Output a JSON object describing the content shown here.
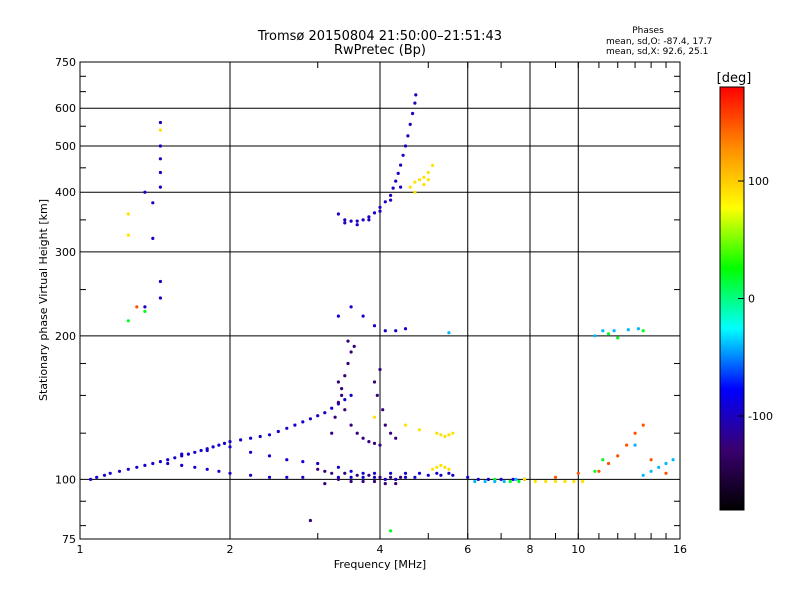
{
  "chart_data": {
    "type": "scatter",
    "title": "Tromsø 20150804 21:50:00–21:51:43",
    "subtitle": "RwPretec (Bp)",
    "xlabel": "Frequency [MHz]",
    "ylabel": "Stationary phase Virtual Height [km]",
    "x_scale": "log",
    "y_scale": "log",
    "xlim": [
      1,
      16
    ],
    "ylim": [
      75,
      750
    ],
    "x_ticks": [
      1,
      2,
      4,
      6,
      8,
      10,
      16
    ],
    "x_tick_labels": [
      "1",
      "2",
      "4",
      "6",
      "8",
      "10",
      "16"
    ],
    "y_ticks": [
      75,
      100,
      200,
      300,
      400,
      500,
      600,
      750
    ],
    "y_tick_labels": [
      "75",
      "100",
      "200",
      "300",
      "400",
      "500",
      "600",
      "750"
    ],
    "grid": true,
    "stats": {
      "heading": "Phases",
      "line_o": "mean, sd,O: -87.4, 17.7",
      "line_x": "mean, sd,X:  92.6, 25.1"
    },
    "colorbar": {
      "label": "[deg]",
      "range": [
        -180,
        180
      ],
      "ticks": [
        100,
        0,
        -100
      ],
      "tick_labels": [
        "100",
        "0",
        "-100"
      ],
      "colors": [
        "#ff0000",
        "#ff8c00",
        "#ffff00",
        "#00ff00",
        "#00ffff",
        "#0000ff",
        "#3a0070",
        "#000000"
      ]
    },
    "series": [
      {
        "phase_deg": -95,
        "points": [
          [
            1.05,
            100
          ],
          [
            1.08,
            101
          ],
          [
            1.12,
            102
          ],
          [
            1.15,
            103
          ],
          [
            1.2,
            104
          ],
          [
            1.25,
            105
          ],
          [
            1.3,
            106
          ],
          [
            1.35,
            107
          ],
          [
            1.4,
            108
          ],
          [
            1.45,
            109
          ],
          [
            1.5,
            110
          ],
          [
            1.55,
            111
          ],
          [
            1.6,
            112
          ],
          [
            1.65,
            113
          ],
          [
            1.7,
            114
          ],
          [
            1.75,
            115
          ],
          [
            1.8,
            116
          ],
          [
            1.85,
            117
          ],
          [
            1.9,
            118
          ],
          [
            1.95,
            119
          ],
          [
            2.0,
            120
          ],
          [
            2.1,
            121
          ],
          [
            2.2,
            122
          ],
          [
            2.3,
            123
          ],
          [
            2.4,
            124
          ],
          [
            2.5,
            126
          ],
          [
            2.6,
            128
          ],
          [
            2.7,
            130
          ],
          [
            2.8,
            132
          ],
          [
            2.9,
            134
          ],
          [
            3.0,
            136
          ],
          [
            3.1,
            138
          ],
          [
            3.2,
            141
          ],
          [
            3.3,
            144
          ],
          [
            3.4,
            147
          ],
          [
            3.5,
            150
          ],
          [
            1.5,
            108
          ],
          [
            1.6,
            107
          ],
          [
            1.7,
            106
          ],
          [
            1.8,
            105
          ],
          [
            1.9,
            104
          ],
          [
            2.0,
            103
          ],
          [
            2.2,
            102
          ],
          [
            2.4,
            101
          ],
          [
            2.6,
            101
          ],
          [
            2.8,
            101
          ],
          [
            1.6,
            113
          ],
          [
            1.8,
            115
          ],
          [
            2.0,
            117
          ],
          [
            2.2,
            114
          ],
          [
            2.4,
            112
          ],
          [
            2.6,
            110
          ],
          [
            2.8,
            109
          ],
          [
            3.0,
            108
          ],
          [
            3.3,
            101
          ],
          [
            3.5,
            101
          ],
          [
            3.7,
            101
          ],
          [
            3.9,
            101
          ],
          [
            4.1,
            100
          ],
          [
            4.3,
            100
          ],
          [
            4.5,
            101
          ],
          [
            4.7,
            101
          ],
          [
            5.0,
            102
          ],
          [
            5.3,
            102
          ],
          [
            5.6,
            102
          ],
          [
            6.0,
            101
          ],
          [
            6.3,
            100
          ],
          [
            6.6,
            100
          ],
          [
            7.0,
            100
          ],
          [
            7.4,
            100
          ],
          [
            7.8,
            100
          ],
          [
            3.3,
            106
          ],
          [
            3.5,
            104
          ],
          [
            3.7,
            103
          ],
          [
            3.9,
            103
          ],
          [
            4.2,
            103
          ],
          [
            4.5,
            103
          ],
          [
            4.8,
            103
          ],
          [
            5.2,
            103
          ],
          [
            5.5,
            103
          ],
          [
            3.3,
            220
          ],
          [
            3.5,
            230
          ],
          [
            3.7,
            220
          ],
          [
            3.9,
            210
          ],
          [
            4.1,
            205
          ],
          [
            4.3,
            205
          ],
          [
            4.5,
            207
          ]
        ]
      },
      {
        "phase_deg": -125,
        "points": [
          [
            3.2,
            125
          ],
          [
            3.25,
            135
          ],
          [
            3.3,
            145
          ],
          [
            3.35,
            155
          ],
          [
            3.4,
            165
          ],
          [
            3.45,
            175
          ],
          [
            3.5,
            185
          ],
          [
            3.55,
            190
          ],
          [
            3.45,
            195
          ],
          [
            3.3,
            160
          ],
          [
            3.35,
            150
          ],
          [
            3.4,
            140
          ],
          [
            3.5,
            130
          ],
          [
            3.6,
            125
          ],
          [
            3.7,
            122
          ],
          [
            3.8,
            120
          ],
          [
            3.9,
            119
          ],
          [
            4.0,
            118
          ],
          [
            3.9,
            160
          ],
          [
            3.95,
            150
          ],
          [
            4.0,
            170
          ],
          [
            4.05,
            140
          ],
          [
            4.1,
            130
          ],
          [
            4.2,
            125
          ],
          [
            4.3,
            122
          ],
          [
            3.0,
            105
          ],
          [
            3.1,
            104
          ],
          [
            3.2,
            103
          ],
          [
            3.4,
            103
          ],
          [
            3.6,
            102
          ],
          [
            3.8,
            102
          ],
          [
            4.0,
            101
          ],
          [
            4.2,
            101
          ],
          [
            4.4,
            101
          ],
          [
            2.9,
            82
          ],
          [
            3.1,
            98
          ],
          [
            3.3,
            100
          ],
          [
            3.5,
            99
          ],
          [
            3.7,
            99
          ],
          [
            3.9,
            99
          ],
          [
            4.1,
            98
          ],
          [
            4.3,
            98
          ]
        ]
      },
      {
        "phase_deg": -100,
        "points": [
          [
            3.3,
            360
          ],
          [
            3.4,
            350
          ],
          [
            3.5,
            348
          ],
          [
            3.6,
            348
          ],
          [
            3.7,
            350
          ],
          [
            3.8,
            355
          ],
          [
            3.9,
            362
          ],
          [
            4.0,
            372
          ],
          [
            4.1,
            382
          ],
          [
            4.2,
            394
          ],
          [
            4.25,
            408
          ],
          [
            4.3,
            422
          ],
          [
            4.35,
            438
          ],
          [
            4.4,
            456
          ],
          [
            4.45,
            478
          ],
          [
            4.5,
            500
          ],
          [
            4.55,
            525
          ],
          [
            4.6,
            555
          ],
          [
            4.65,
            585
          ],
          [
            4.7,
            615
          ],
          [
            4.72,
            640
          ],
          [
            3.4,
            345
          ],
          [
            3.6,
            342
          ],
          [
            3.8,
            350
          ],
          [
            4.0,
            365
          ],
          [
            4.2,
            385
          ],
          [
            4.4,
            410
          ],
          [
            1.35,
            400
          ],
          [
            1.4,
            380
          ],
          [
            1.45,
            560
          ],
          [
            1.45,
            500
          ],
          [
            1.45,
            470
          ],
          [
            1.45,
            440
          ],
          [
            1.45,
            410
          ],
          [
            1.45,
            260
          ],
          [
            1.45,
            240
          ],
          [
            1.4,
            320
          ],
          [
            1.35,
            230
          ]
        ]
      },
      {
        "phase_deg": 90,
        "points": [
          [
            4.6,
            410
          ],
          [
            4.7,
            420
          ],
          [
            4.8,
            425
          ],
          [
            4.9,
            430
          ],
          [
            5.0,
            440
          ],
          [
            5.1,
            455
          ],
          [
            4.7,
            400
          ],
          [
            4.9,
            415
          ],
          [
            5.0,
            425
          ],
          [
            5.2,
            125
          ],
          [
            5.3,
            124
          ],
          [
            5.4,
            123
          ],
          [
            5.5,
            124
          ],
          [
            5.6,
            125
          ],
          [
            5.1,
            105
          ],
          [
            5.2,
            106
          ],
          [
            5.3,
            107
          ],
          [
            5.4,
            106
          ],
          [
            5.5,
            105
          ],
          [
            7.8,
            100
          ],
          [
            8.2,
            99
          ],
          [
            8.6,
            99
          ],
          [
            9.0,
            99
          ],
          [
            9.4,
            99
          ],
          [
            9.8,
            99
          ],
          [
            10.2,
            99
          ],
          [
            4.5,
            130
          ],
          [
            4.8,
            127
          ],
          [
            3.9,
            135
          ],
          [
            1.45,
            540
          ],
          [
            1.25,
            325
          ],
          [
            1.25,
            360
          ]
        ]
      },
      {
        "phase_deg": 20,
        "points": [
          [
            1.25,
            215
          ],
          [
            1.35,
            225
          ],
          [
            7.3,
            99
          ],
          [
            7.6,
            99
          ],
          [
            6.8,
            100
          ],
          [
            4.2,
            78
          ],
          [
            13.5,
            205
          ],
          [
            12.0,
            198
          ],
          [
            11.5,
            202
          ],
          [
            10.8,
            104
          ],
          [
            11.2,
            110
          ]
        ]
      },
      {
        "phase_deg": -40,
        "points": [
          [
            6.2,
            99
          ],
          [
            6.5,
            99
          ],
          [
            6.8,
            99
          ],
          [
            7.1,
            99
          ],
          [
            7.5,
            100
          ],
          [
            5.5,
            203
          ],
          [
            10.8,
            200
          ],
          [
            11.2,
            205
          ],
          [
            11.8,
            205
          ],
          [
            12.6,
            206
          ],
          [
            13.2,
            207
          ],
          [
            14.0,
            104
          ],
          [
            14.5,
            106
          ],
          [
            15.0,
            108
          ],
          [
            15.5,
            110
          ],
          [
            13.0,
            118
          ],
          [
            13.5,
            102
          ]
        ]
      },
      {
        "phase_deg": 150,
        "points": [
          [
            11.0,
            104
          ],
          [
            11.5,
            108
          ],
          [
            12.0,
            112
          ],
          [
            12.5,
            118
          ],
          [
            13.0,
            125
          ],
          [
            13.5,
            130
          ],
          [
            14.0,
            110
          ],
          [
            15.0,
            103
          ],
          [
            1.3,
            230
          ],
          [
            10.0,
            103
          ],
          [
            9.0,
            101
          ]
        ]
      }
    ]
  }
}
